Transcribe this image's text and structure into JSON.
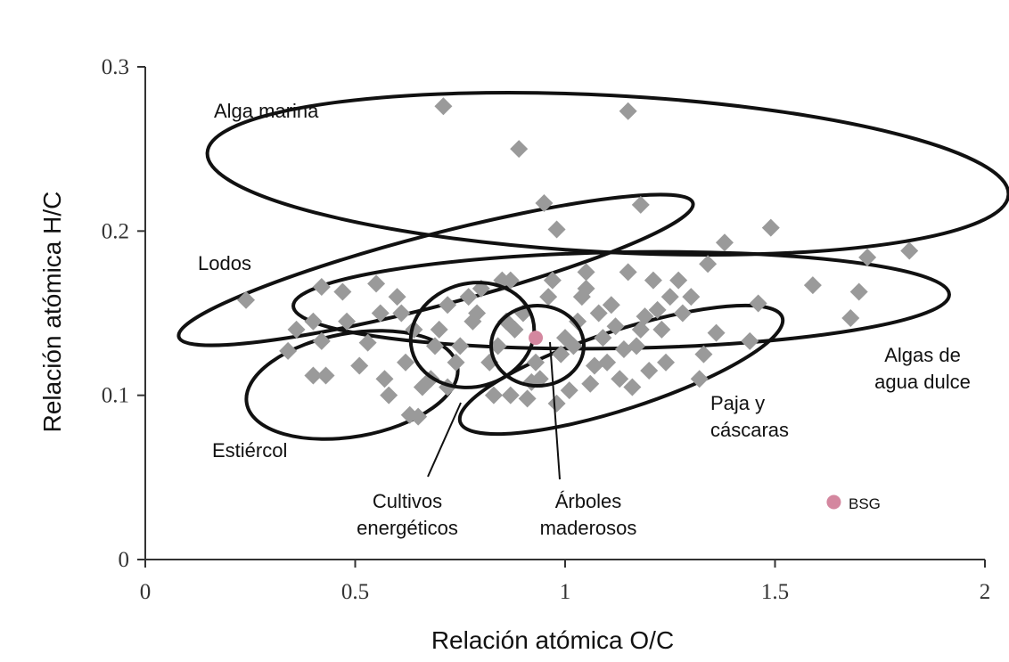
{
  "chart_data": {
    "type": "scatter",
    "xlabel": "Relación atómica O/C",
    "ylabel": "Relación atómica H/C",
    "xlim": [
      0,
      2
    ],
    "ylim": [
      0,
      0.3
    ],
    "xticks": [
      0,
      0.5,
      1,
      1.5,
      2
    ],
    "yticks": [
      0,
      0.1,
      0.2,
      0.3
    ],
    "series": [
      {
        "color": "#9a9a9a",
        "marker": "diamond",
        "x": [
          0.71,
          1.15,
          0.89,
          0.95,
          1.18,
          0.98,
          1.49,
          1.38,
          1.82,
          1.72,
          1.34,
          0.24,
          1.59,
          1.7,
          1.68,
          1.46,
          1.36,
          1.44,
          1.33,
          1.32,
          0.4,
          0.43,
          0.51,
          0.57,
          0.58,
          0.63,
          0.65,
          0.34,
          0.36,
          0.42,
          0.47,
          0.55,
          0.56,
          0.53,
          0.48,
          0.4,
          0.42,
          0.6,
          0.62,
          0.66,
          0.7,
          0.72,
          0.75,
          0.78,
          0.8,
          0.82,
          0.85,
          0.87,
          0.9,
          0.92,
          0.96,
          0.99,
          1.01,
          1.03,
          1.05,
          1.07,
          1.09,
          1.11,
          1.13,
          1.15,
          1.17,
          1.19,
          1.21,
          1.23,
          1.25,
          1.27,
          1.2,
          1.16,
          1.12,
          1.08,
          1.04,
          1.0,
          0.97,
          0.93,
          0.88,
          0.84,
          0.79,
          0.74,
          0.69,
          0.64,
          0.61,
          0.68,
          0.77,
          0.86,
          0.94,
          1.02,
          1.1,
          1.18,
          1.24,
          1.28,
          0.72,
          0.83,
          0.91,
          1.06,
          1.14,
          1.22,
          0.98,
          0.87,
          1.3,
          1.05
        ],
        "y": [
          0.276,
          0.273,
          0.25,
          0.217,
          0.216,
          0.201,
          0.202,
          0.193,
          0.188,
          0.184,
          0.18,
          0.158,
          0.167,
          0.163,
          0.147,
          0.156,
          0.138,
          0.133,
          0.125,
          0.11,
          0.112,
          0.112,
          0.118,
          0.11,
          0.1,
          0.088,
          0.087,
          0.127,
          0.14,
          0.166,
          0.163,
          0.168,
          0.15,
          0.132,
          0.145,
          0.145,
          0.133,
          0.16,
          0.12,
          0.105,
          0.14,
          0.155,
          0.13,
          0.145,
          0.165,
          0.12,
          0.17,
          0.1,
          0.15,
          0.108,
          0.16,
          0.125,
          0.103,
          0.145,
          0.165,
          0.118,
          0.135,
          0.155,
          0.11,
          0.175,
          0.13,
          0.148,
          0.17,
          0.14,
          0.16,
          0.17,
          0.115,
          0.105,
          0.142,
          0.15,
          0.16,
          0.135,
          0.17,
          0.12,
          0.14,
          0.13,
          0.15,
          0.12,
          0.13,
          0.14,
          0.15,
          0.11,
          0.16,
          0.145,
          0.11,
          0.13,
          0.12,
          0.14,
          0.12,
          0.15,
          0.105,
          0.1,
          0.098,
          0.107,
          0.128,
          0.152,
          0.095,
          0.17,
          0.16,
          0.175
        ]
      },
      {
        "color": "#d4879f",
        "marker": "circle",
        "x": [
          0.93,
          1.64
        ],
        "y": [
          0.135,
          0.035
        ]
      }
    ],
    "annotations": [
      {
        "lines": [
          "Alga marina"
        ]
      },
      {
        "lines": [
          "Lodos"
        ]
      },
      {
        "lines": [
          "Estiércol"
        ]
      },
      {
        "lines": [
          "Cultivos",
          "energéticos"
        ]
      },
      {
        "lines": [
          "Árboles",
          "maderosos"
        ]
      },
      {
        "lines": [
          "Paja y",
          "cáscaras"
        ]
      },
      {
        "lines": [
          "Algas de",
          "agua dulce"
        ]
      },
      {
        "lines": [
          "BSG"
        ]
      }
    ]
  }
}
